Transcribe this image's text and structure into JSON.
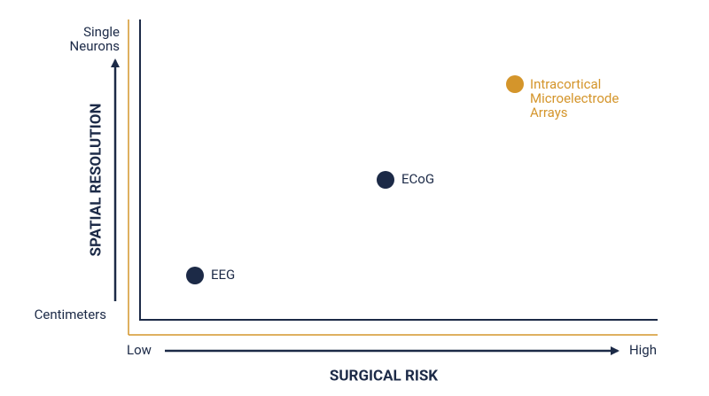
{
  "y_axis": {
    "title": "SPATIAL RESOLUTION",
    "top_label": [
      "Single",
      "Neurons"
    ],
    "bottom_label": "Centimeters"
  },
  "x_axis": {
    "title": "SURGICAL RISK",
    "left_label": "Low",
    "right_label": "High"
  },
  "nodes": [
    {
      "label": [
        "EEG"
      ]
    },
    {
      "label": [
        "ECoG"
      ]
    },
    {
      "label": [
        "Intracortical",
        "Microelectrode",
        "Arrays"
      ]
    }
  ]
}
